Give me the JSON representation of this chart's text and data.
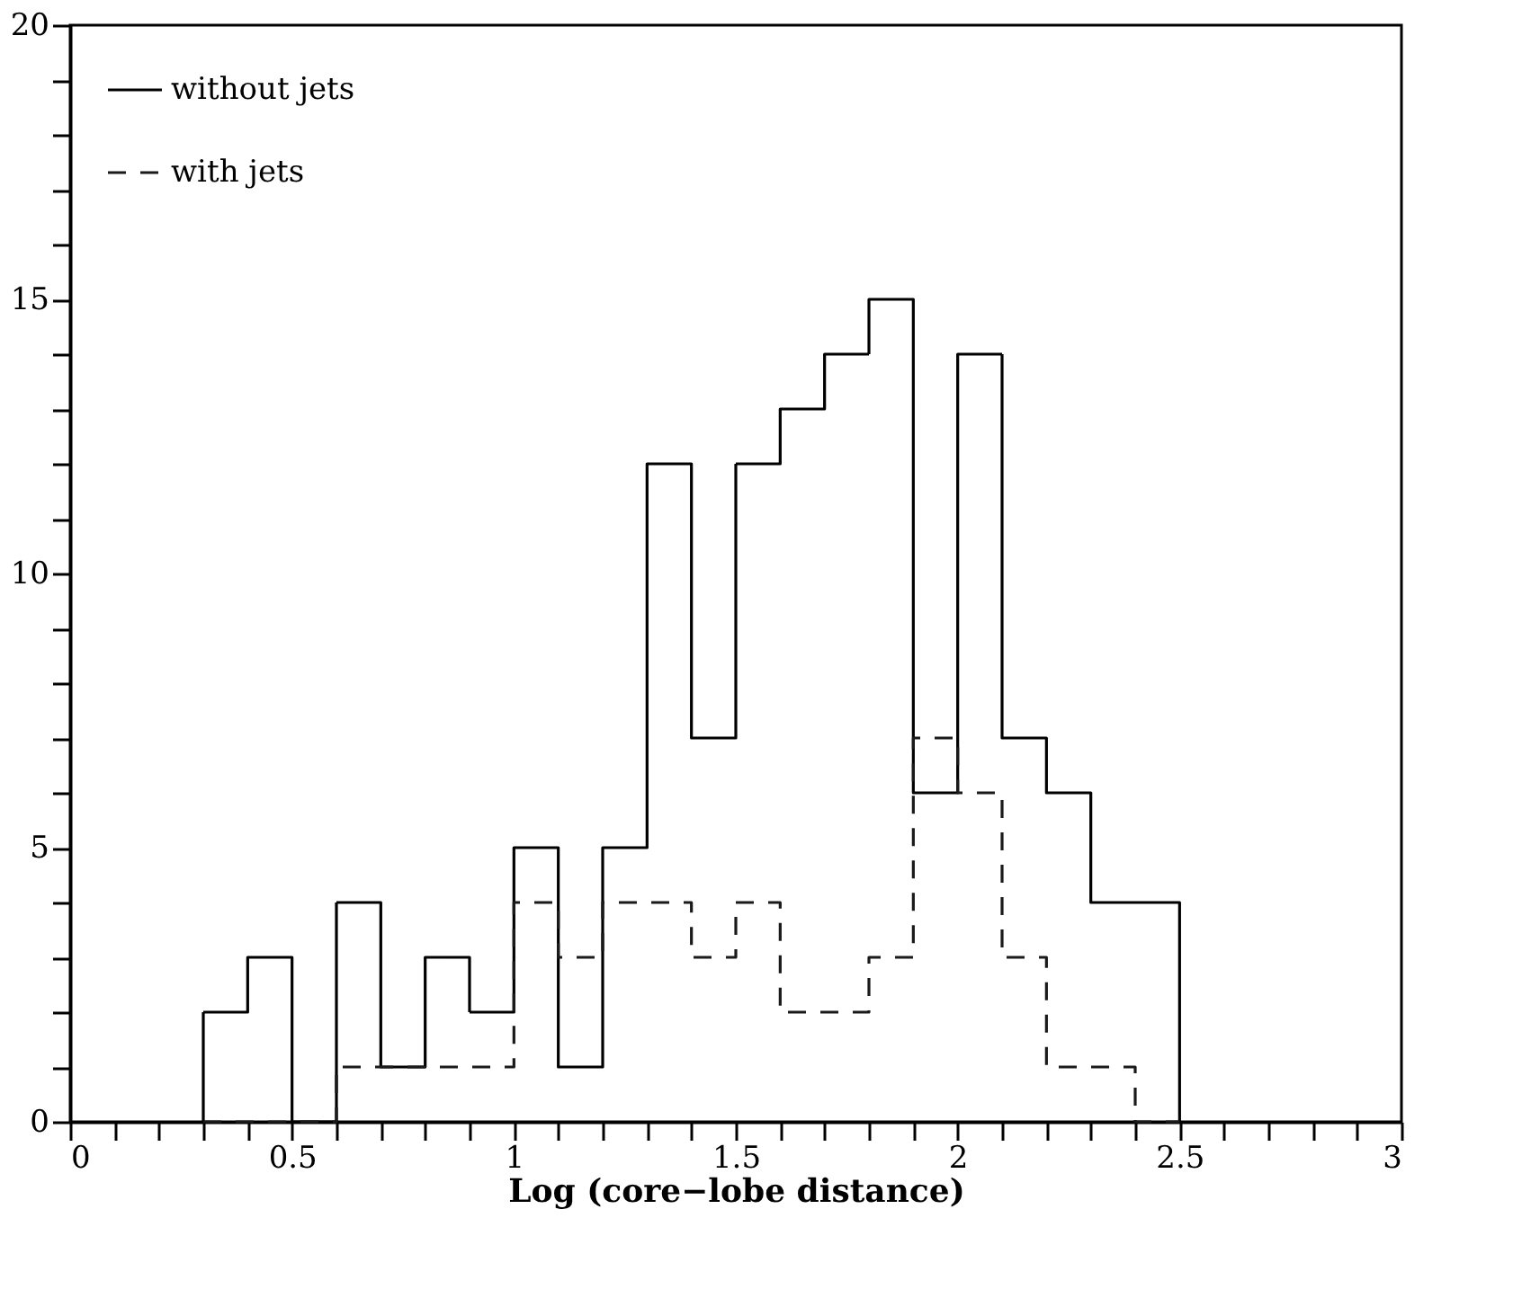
{
  "chart_data": {
    "type": "histogram",
    "xlabel": "Log (core−lobe distance)",
    "bins": [
      0.3,
      0.4,
      0.5,
      0.6,
      0.7,
      0.8,
      0.9,
      1.0,
      1.1,
      1.2,
      1.3,
      1.4,
      1.5,
      1.6,
      1.7,
      1.8,
      1.9,
      2.0,
      2.1,
      2.2,
      2.3,
      2.4,
      2.5
    ],
    "series": [
      {
        "name": "without jets",
        "color": "#000000",
        "line_style": "solid",
        "values": [
          2,
          3,
          0,
          4,
          1,
          3,
          2,
          5,
          1,
          5,
          12,
          7,
          12,
          13,
          14,
          15,
          6,
          14,
          7,
          6,
          4,
          4
        ]
      },
      {
        "name": "with jets",
        "color": "#1a1a1a",
        "line_style": "dashed",
        "values": [
          0,
          0,
          0,
          1,
          1,
          1,
          1,
          4,
          3,
          4,
          4,
          3,
          4,
          2,
          2,
          3,
          7,
          6,
          3,
          1,
          1,
          0
        ]
      }
    ],
    "xlim": [
      0,
      3
    ],
    "ylim": [
      0,
      20
    ],
    "xticks": [
      0,
      {
        "value": 0.1,
        "label": null
      },
      {
        "value": 0.2,
        "label": null
      },
      {
        "value": 0.3,
        "label": null
      },
      {
        "value": 0.4,
        "label": null
      },
      0.5,
      {
        "value": 0.6,
        "label": null
      },
      {
        "value": 0.7,
        "label": null
      },
      {
        "value": 0.8,
        "label": null
      },
      {
        "value": 0.9,
        "label": null
      },
      1,
      {
        "value": 1.1,
        "label": null
      },
      {
        "value": 1.2,
        "label": null
      },
      {
        "value": 1.3,
        "label": null
      },
      {
        "value": 1.4,
        "label": null
      },
      1.5,
      {
        "value": 1.6,
        "label": null
      },
      {
        "value": 1.7,
        "label": null
      },
      {
        "value": 1.8,
        "label": null
      },
      {
        "value": 1.9,
        "label": null
      },
      2,
      {
        "value": 2.1,
        "label": null
      },
      {
        "value": 2.2,
        "label": null
      },
      {
        "value": 2.3,
        "label": null
      },
      {
        "value": 2.4,
        "label": null
      },
      2.5,
      {
        "value": 2.6,
        "label": null
      },
      {
        "value": 2.7,
        "label": null
      },
      {
        "value": 2.8,
        "label": null
      },
      {
        "value": 2.9,
        "label": null
      },
      3
    ],
    "yticks": [
      0,
      {
        "value": 1,
        "label": null
      },
      {
        "value": 2,
        "label": null
      },
      {
        "value": 3,
        "label": null
      },
      {
        "value": 4,
        "label": null
      },
      5,
      {
        "value": 6,
        "label": null
      },
      {
        "value": 7,
        "label": null
      },
      {
        "value": 8,
        "label": null
      },
      {
        "value": 9,
        "label": null
      },
      10,
      {
        "value": 11,
        "label": null
      },
      {
        "value": 12,
        "label": null
      },
      {
        "value": 13,
        "label": null
      },
      {
        "value": 14,
        "label": null
      },
      15,
      {
        "value": 16,
        "label": null
      },
      {
        "value": 17,
        "label": null
      },
      {
        "value": 18,
        "label": null
      },
      {
        "value": 19,
        "label": null
      },
      20
    ],
    "grid": false,
    "legend": "top left"
  }
}
